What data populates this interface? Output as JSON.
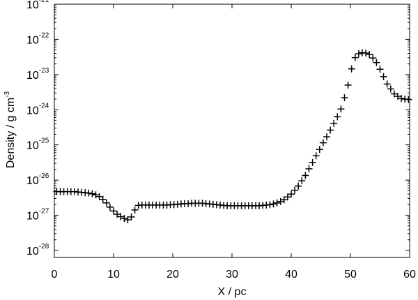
{
  "chart_data": {
    "type": "scatter",
    "title": "",
    "xlabel": "X / pc",
    "ylabel": "Density / g cm",
    "ylabel_exp": "-3",
    "xlim": [
      0,
      60
    ],
    "ylim_log10": [
      -28.2,
      -21
    ],
    "yscale": "log",
    "grid": false,
    "marker": "plus",
    "color": "#000000",
    "x_ticks": [
      "0",
      "10",
      "20",
      "30",
      "40",
      "50",
      "60"
    ],
    "y_ticks": [
      {
        "base": "10",
        "exp": "-21"
      },
      {
        "base": "10",
        "exp": "-22"
      },
      {
        "base": "10",
        "exp": "-23"
      },
      {
        "base": "10",
        "exp": "-24"
      },
      {
        "base": "10",
        "exp": "-25"
      },
      {
        "base": "10",
        "exp": "-26"
      },
      {
        "base": "10",
        "exp": "-27"
      },
      {
        "base": "10",
        "exp": "-28"
      }
    ],
    "series": [
      {
        "x": [
          0.4,
          1.0,
          1.6,
          2.2,
          2.8,
          3.4,
          4.0,
          4.6,
          5.2,
          5.8,
          6.4,
          7.0,
          7.6,
          8.2,
          8.8,
          9.4,
          10.0,
          10.6,
          11.2,
          11.8,
          12.4,
          13.0,
          13.6,
          14.2,
          14.8,
          15.4,
          16.0,
          16.6,
          17.2,
          17.8,
          18.4,
          19.0,
          19.6,
          20.2,
          20.8,
          21.4,
          22.0,
          22.6,
          23.2,
          23.8,
          24.4,
          25.0,
          25.6,
          26.2,
          26.8,
          27.4,
          28.0,
          28.6,
          29.2,
          29.8,
          30.4,
          31.0,
          31.6,
          32.2,
          32.8,
          33.4,
          34.0,
          34.6,
          35.2,
          35.8,
          36.4,
          37.0,
          37.6,
          38.2,
          38.8,
          39.4,
          40.0,
          40.6,
          41.2,
          41.8,
          42.4,
          43.0,
          43.6,
          44.2,
          44.8,
          45.4,
          46.0,
          46.6,
          47.2,
          47.8,
          48.4,
          49.0,
          49.6,
          50.2,
          50.8,
          51.4,
          52.0,
          52.6,
          53.2,
          53.8,
          54.4,
          55.0,
          55.6,
          56.2,
          56.8,
          57.4,
          58.0,
          58.6,
          59.2,
          59.8
        ],
        "log10_density": [
          -26.33,
          -26.33,
          -26.33,
          -26.33,
          -26.33,
          -26.33,
          -26.34,
          -26.35,
          -26.36,
          -26.37,
          -26.39,
          -26.42,
          -26.47,
          -26.55,
          -26.65,
          -26.77,
          -26.88,
          -26.97,
          -27.04,
          -27.09,
          -27.13,
          -27.05,
          -26.85,
          -26.72,
          -26.71,
          -26.71,
          -26.71,
          -26.71,
          -26.71,
          -26.71,
          -26.71,
          -26.71,
          -26.7,
          -26.7,
          -26.69,
          -26.68,
          -26.67,
          -26.67,
          -26.66,
          -26.66,
          -26.66,
          -26.66,
          -26.67,
          -26.68,
          -26.69,
          -26.7,
          -26.71,
          -26.72,
          -26.73,
          -26.73,
          -26.73,
          -26.73,
          -26.73,
          -26.73,
          -26.73,
          -26.73,
          -26.73,
          -26.73,
          -26.72,
          -26.71,
          -26.7,
          -26.68,
          -26.65,
          -26.61,
          -26.56,
          -26.48,
          -26.4,
          -26.29,
          -26.17,
          -26.02,
          -25.87,
          -25.68,
          -25.5,
          -25.31,
          -25.13,
          -24.94,
          -24.77,
          -24.58,
          -24.39,
          -24.2,
          -23.98,
          -23.66,
          -23.3,
          -22.84,
          -22.52,
          -22.41,
          -22.38,
          -22.39,
          -22.43,
          -22.53,
          -22.66,
          -22.85,
          -23.06,
          -23.27,
          -23.41,
          -23.55,
          -23.62,
          -23.68,
          -23.7,
          -23.71
        ]
      }
    ]
  }
}
